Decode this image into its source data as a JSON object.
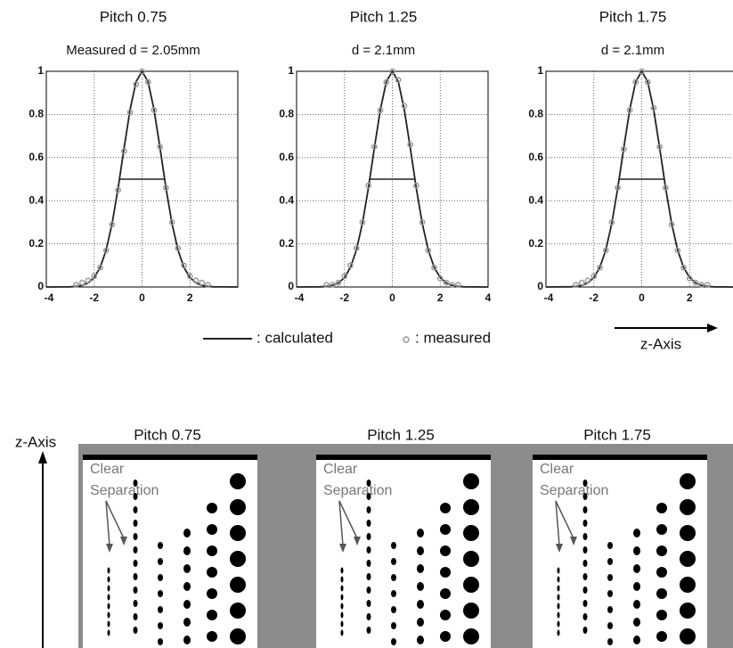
{
  "chart_data": [
    {
      "type": "line",
      "title": "Pitch 0.75",
      "subtitle": "Measured  d = 2.05mm",
      "xlim": [
        -4,
        4
      ],
      "xticks": [
        -4,
        -2,
        0,
        2
      ],
      "ylim": [
        0,
        1
      ],
      "yticks": [
        0,
        0.2,
        0.4,
        0.6,
        0.8,
        1
      ],
      "grid": true,
      "half_max_line": {
        "y": 0.5,
        "x": [
          -0.95,
          0.95
        ]
      },
      "series": [
        {
          "name": ": calculated",
          "color": "#222222",
          "x": [
            -4,
            -3,
            -2.75,
            -2.5,
            -2.25,
            -2,
            -1.75,
            -1.5,
            -1.25,
            -1,
            -0.75,
            -0.5,
            -0.25,
            0,
            0.25,
            0.5,
            0.75,
            1,
            1.25,
            1.5,
            1.75,
            2,
            2.25,
            2.5,
            2.75,
            3,
            4
          ],
          "values": [
            0,
            0.001,
            0.003,
            0.008,
            0.019,
            0.044,
            0.091,
            0.172,
            0.295,
            0.458,
            0.644,
            0.823,
            0.952,
            1,
            0.952,
            0.823,
            0.644,
            0.458,
            0.295,
            0.172,
            0.091,
            0.044,
            0.019,
            0.008,
            0.003,
            0.001,
            0
          ]
        },
        {
          "name": ": measured",
          "color": "#999999",
          "x": [
            -2.75,
            -2.5,
            -2.25,
            -2,
            -1.75,
            -1.5,
            -1.25,
            -1,
            -0.75,
            -0.5,
            -0.25,
            0,
            0.25,
            0.5,
            0.75,
            1,
            1.25,
            1.5,
            1.75,
            2,
            2.25,
            2.5,
            2.75
          ],
          "values": [
            0.01,
            0.02,
            0.03,
            0.05,
            0.09,
            0.17,
            0.29,
            0.45,
            0.63,
            0.81,
            0.94,
            1,
            0.95,
            0.82,
            0.65,
            0.46,
            0.3,
            0.18,
            0.1,
            0.05,
            0.03,
            0.02,
            0.01
          ]
        }
      ]
    },
    {
      "type": "line",
      "title": "Pitch 1.25",
      "subtitle": "d = 2.1mm",
      "xlim": [
        -4,
        4
      ],
      "xticks": [
        -4,
        -2,
        0,
        2,
        4
      ],
      "ylim": [
        0,
        1
      ],
      "yticks": [
        0,
        0.2,
        0.4,
        0.6,
        0.8,
        1
      ],
      "grid": true,
      "half_max_line": {
        "y": 0.5,
        "x": [
          -0.95,
          0.95
        ]
      },
      "series": [
        {
          "name": ": calculated",
          "color": "#222222",
          "x": [
            -4,
            -3,
            -2.75,
            -2.5,
            -2.25,
            -2,
            -1.75,
            -1.5,
            -1.25,
            -1,
            -0.75,
            -0.5,
            -0.25,
            0,
            0.25,
            0.5,
            0.75,
            1,
            1.25,
            1.5,
            1.75,
            2,
            2.25,
            2.5,
            2.75,
            3,
            4
          ],
          "values": [
            0,
            0.001,
            0.003,
            0.008,
            0.019,
            0.044,
            0.091,
            0.172,
            0.295,
            0.458,
            0.644,
            0.823,
            0.952,
            1,
            0.952,
            0.823,
            0.644,
            0.458,
            0.295,
            0.172,
            0.091,
            0.044,
            0.019,
            0.008,
            0.003,
            0.001,
            0
          ]
        },
        {
          "name": ": measured",
          "color": "#999999",
          "x": [
            -2.75,
            -2.5,
            -2.25,
            -2,
            -1.75,
            -1.5,
            -1.25,
            -1,
            -0.75,
            -0.5,
            -0.25,
            0,
            0.25,
            0.5,
            0.75,
            1,
            1.25,
            1.5,
            1.75,
            2,
            2.25,
            2.5,
            2.75
          ],
          "values": [
            0.01,
            0.01,
            0.02,
            0.05,
            0.1,
            0.18,
            0.3,
            0.47,
            0.65,
            0.82,
            0.95,
            1,
            0.96,
            0.84,
            0.66,
            0.47,
            0.3,
            0.17,
            0.09,
            0.04,
            0.02,
            0.01,
            0.01
          ]
        }
      ]
    },
    {
      "type": "line",
      "title": "Pitch 1.75",
      "subtitle": "d = 2.1mm",
      "xlim": [
        -4,
        4
      ],
      "xticks": [
        -4,
        -2,
        0,
        2
      ],
      "ylim": [
        0,
        1
      ],
      "yticks": [
        0,
        0.2,
        0.4,
        0.6,
        0.8,
        1
      ],
      "grid": true,
      "half_max_line": {
        "y": 0.5,
        "x": [
          -0.95,
          0.95
        ]
      },
      "series": [
        {
          "name": ": calculated",
          "color": "#222222",
          "x": [
            -4,
            -3,
            -2.75,
            -2.5,
            -2.25,
            -2,
            -1.75,
            -1.5,
            -1.25,
            -1,
            -0.75,
            -0.5,
            -0.25,
            0,
            0.25,
            0.5,
            0.75,
            1,
            1.25,
            1.5,
            1.75,
            2,
            2.25,
            2.5,
            2.75,
            3,
            4
          ],
          "values": [
            0,
            0.001,
            0.003,
            0.008,
            0.019,
            0.044,
            0.091,
            0.172,
            0.295,
            0.458,
            0.644,
            0.823,
            0.952,
            1,
            0.952,
            0.823,
            0.644,
            0.458,
            0.295,
            0.172,
            0.091,
            0.044,
            0.019,
            0.008,
            0.003,
            0.001,
            0
          ]
        },
        {
          "name": ": measured",
          "color": "#999999",
          "x": [
            -2.75,
            -2.5,
            -2.25,
            -2,
            -1.75,
            -1.5,
            -1.25,
            -1,
            -0.75,
            -0.5,
            -0.25,
            0,
            0.25,
            0.5,
            0.75,
            1,
            1.25,
            1.5,
            1.75,
            2,
            2.25,
            2.5,
            2.75
          ],
          "values": [
            0.01,
            0.02,
            0.03,
            0.05,
            0.09,
            0.17,
            0.3,
            0.46,
            0.64,
            0.82,
            0.95,
            1,
            0.95,
            0.83,
            0.65,
            0.46,
            0.29,
            0.17,
            0.09,
            0.04,
            0.02,
            0.01,
            0.01
          ]
        }
      ]
    }
  ],
  "x_axis_arrow_label": "z-Axis",
  "images_axis_label": "z-Axis",
  "images": [
    {
      "title": "Pitch 0.75",
      "annotation_line1": "Clear",
      "annotation_line2": "Separation"
    },
    {
      "title": "Pitch 1.25",
      "annotation_line1": "Clear",
      "annotation_line2": "Separation"
    },
    {
      "title": "Pitch 1.75",
      "annotation_line1": "Clear",
      "annotation_line2": "Separation"
    }
  ]
}
